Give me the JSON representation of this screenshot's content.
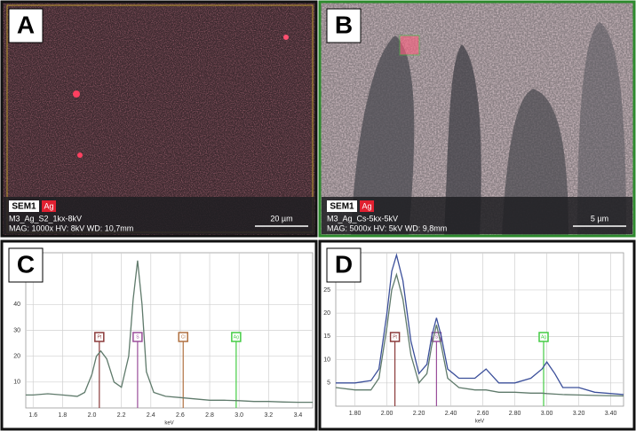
{
  "panels": [
    {
      "label": "A",
      "sem": "SEM1",
      "element": "Ag",
      "name": "M3_Ag_S2_1kx-8kV",
      "params": "MAG: 1000x  HV: 8kV  WD: 10,7mm",
      "scale": "20 µm"
    },
    {
      "label": "B",
      "sem": "SEM1",
      "element": "Ag",
      "name": "M3_Ag_Cs-5kx-5kV",
      "params": "MAG: 5000x  HV: 5kV  WD: 9,8mm",
      "scale": "5 µm"
    }
  ],
  "chart_data": [
    {
      "type": "line",
      "label": "C",
      "xlabel": "keV",
      "x": [
        1.55,
        1.6,
        1.7,
        1.8,
        1.9,
        1.95,
        2.0,
        2.03,
        2.06,
        2.1,
        2.15,
        2.2,
        2.25,
        2.28,
        2.31,
        2.34,
        2.37,
        2.42,
        2.5,
        2.6,
        2.7,
        2.8,
        2.9,
        3.0,
        3.1,
        3.2,
        3.3,
        3.4,
        3.5
      ],
      "series": [
        {
          "color": "#5f7a6b",
          "values": [
            5,
            5,
            5.5,
            5,
            4.5,
            6,
            13,
            20,
            22,
            19,
            10,
            8,
            20,
            42,
            57,
            40,
            14,
            6,
            4.5,
            4,
            3.5,
            3,
            3,
            2.8,
            2.5,
            2.5,
            2.3,
            2.2,
            2.2
          ]
        }
      ],
      "xlim": [
        1.55,
        3.5
      ],
      "ylim": [
        0,
        60
      ],
      "xticks": [
        1.6,
        1.8,
        {
          "value": 2.0,
          "label": "2.0"
        },
        2.2,
        2.4,
        2.6,
        2.8,
        {
          "value": 3.0,
          "label": "3.0"
        },
        3.2,
        3.4
      ],
      "yticks": [
        10,
        20,
        30,
        40
      ],
      "grid": true,
      "element_lines": [
        {
          "name": "Pt",
          "x": 2.05,
          "color": "#8b3a3a"
        },
        {
          "name": "S",
          "x": 2.31,
          "color": "#9b4f9b"
        },
        {
          "name": "Cl",
          "x": 2.62,
          "color": "#b07040"
        },
        {
          "name": "Ag",
          "x": 2.98,
          "color": "#44cc44"
        }
      ]
    },
    {
      "type": "line",
      "label": "D",
      "xlabel": "keV",
      "x": [
        1.68,
        1.8,
        1.9,
        1.95,
        2.0,
        2.03,
        2.06,
        2.1,
        2.15,
        2.2,
        2.25,
        2.28,
        2.31,
        2.34,
        2.38,
        2.45,
        2.55,
        2.62,
        2.7,
        2.8,
        2.9,
        2.97,
        3.0,
        3.05,
        3.1,
        3.2,
        3.3,
        3.48
      ],
      "series": [
        {
          "color": "#3b4f9a",
          "values": [
            5,
            5,
            5.5,
            8,
            20,
            29,
            32.5,
            27,
            14,
            7,
            9,
            15,
            19,
            15,
            8,
            6,
            6,
            8,
            5,
            5,
            6,
            8,
            9.5,
            7,
            4,
            4,
            3,
            2.5
          ]
        },
        {
          "color": "#5f7a6b",
          "values": [
            4,
            3.5,
            3.5,
            6,
            17,
            25,
            28.3,
            23,
            11,
            5,
            7,
            13,
            17.5,
            13,
            6,
            4,
            3.5,
            3.5,
            3,
            3,
            2.8,
            2.8,
            2.7,
            2.6,
            2.5,
            2.4,
            2.3,
            2.2
          ]
        }
      ],
      "xlim": [
        1.68,
        3.48
      ],
      "ylim": [
        0,
        33
      ],
      "xticks": [
        {
          "value": 1.8,
          "label": "1.80"
        },
        {
          "value": 2.0,
          "label": "2.00"
        },
        {
          "value": 2.2,
          "label": "2.20"
        },
        {
          "value": 2.4,
          "label": "2.40"
        },
        {
          "value": 2.6,
          "label": "2.60"
        },
        {
          "value": 2.8,
          "label": "2.80"
        },
        {
          "value": 3.0,
          "label": "3.00"
        },
        {
          "value": 3.2,
          "label": "3.20"
        },
        {
          "value": 3.4,
          "label": "3.40"
        }
      ],
      "yticks": [
        5,
        10,
        15,
        20,
        25
      ],
      "grid": true,
      "element_lines": [
        {
          "name": "Pt",
          "x": 2.05,
          "color": "#8b3a3a"
        },
        {
          "name": "S",
          "x": 2.31,
          "color": "#9b4f9b"
        },
        {
          "name": "Ag",
          "x": 2.98,
          "color": "#44cc44"
        }
      ]
    }
  ]
}
